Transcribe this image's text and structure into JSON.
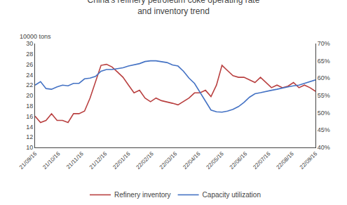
{
  "chart_data": {
    "type": "line",
    "title": "China's refinery petroleum coke operating rate\nand inventory trend",
    "ylabel": "10000 tons",
    "x": [
      0,
      0.2352941176,
      0.4705882353,
      0.7058823529,
      0.9411764706,
      1.1764705882,
      1.4117647059,
      1.6470588235,
      1.8823529412,
      2.1176470588,
      2.3529411765,
      2.5882352941,
      2.8235294118,
      3.0588235294,
      3.2941176471,
      3.5294117647,
      3.7647058824,
      4,
      4.2352941176,
      4.4705882353,
      4.7058823529,
      4.9411764706,
      5.1764705882,
      5.4117647059,
      5.6470588235,
      5.8823529412,
      6.1176470588,
      6.3529411765,
      6.5882352941,
      6.8235294118,
      7.0588235294,
      7.2941176471,
      7.5294117647,
      7.7647058824,
      8,
      8.2352941176,
      8.4705882353,
      8.7058823529,
      8.9411764706,
      9.1764705882,
      9.4117647059,
      9.6470588235,
      9.8823529412,
      10.1176470588,
      10.3529411765,
      10.5882352941,
      10.8235294118,
      11.0588235294,
      11.2941176471,
      11.5294117647,
      11.7647058824,
      12
    ],
    "xlim": [
      0,
      12
    ],
    "xticks": [
      {
        "value": 0,
        "label": "21/09/16"
      },
      {
        "value": 1,
        "label": "21/10/16"
      },
      {
        "value": 2,
        "label": "21/11/16"
      },
      {
        "value": 3,
        "label": "21/12/16"
      },
      {
        "value": 4,
        "label": "22/01/16"
      },
      {
        "value": 5,
        "label": "22/02/16"
      },
      {
        "value": 6,
        "label": "22/03/16"
      },
      {
        "value": 7,
        "label": "22/04/16"
      },
      {
        "value": 8,
        "label": "22/05/16"
      },
      {
        "value": 9,
        "label": "22/06/16"
      },
      {
        "value": 10,
        "label": "22/07/16"
      },
      {
        "value": 11,
        "label": "22/08/16"
      },
      {
        "value": 12,
        "label": "22/09/16"
      }
    ],
    "ylim": [
      10,
      30
    ],
    "yticks": [
      10,
      12,
      14,
      16,
      18,
      20,
      22,
      24,
      26,
      28,
      30
    ],
    "y2lim": [
      0.4,
      0.7
    ],
    "y2ticks": [
      {
        "value": 0.4,
        "label": "40%"
      },
      {
        "value": 0.45,
        "label": "45%"
      },
      {
        "value": 0.5,
        "label": "50%"
      },
      {
        "value": 0.55,
        "label": "55%"
      },
      {
        "value": 0.6,
        "label": "60%"
      },
      {
        "value": 0.65,
        "label": "65%"
      },
      {
        "value": 0.7,
        "label": "70%"
      }
    ],
    "grid": false,
    "legend": "bottom",
    "series": [
      {
        "name": "Refinery inventory",
        "color": "#b94040",
        "values": [
          16.0,
          14.8,
          15.2,
          16.5,
          15.2,
          15.2,
          14.8,
          16.5,
          16.5,
          17.0,
          19.5,
          22.5,
          25.8,
          26.0,
          25.5,
          24.5,
          23.5,
          22.0,
          20.5,
          21.0,
          19.5,
          18.8,
          19.5,
          19.0,
          18.8,
          18.5,
          18.2,
          18.8,
          19.5,
          20.5,
          20.5,
          21.0,
          19.8,
          22.0,
          25.8,
          24.8,
          23.8,
          23.5,
          23.5,
          23.0,
          22.5,
          23.5,
          22.5,
          21.5,
          22.0,
          21.5,
          21.8,
          22.5,
          21.5,
          22.0,
          21.5,
          20.8
        ]
      },
      {
        "name": "Capacity utilization",
        "color": "#4472c4",
        "axis": "y2",
        "values": [
          0.58,
          0.59,
          0.57,
          0.568,
          0.575,
          0.58,
          0.578,
          0.585,
          0.585,
          0.598,
          0.6,
          0.605,
          0.62,
          0.625,
          0.625,
          0.628,
          0.63,
          0.635,
          0.638,
          0.642,
          0.648,
          0.65,
          0.65,
          0.648,
          0.645,
          0.638,
          0.635,
          0.62,
          0.6,
          0.585,
          0.56,
          0.535,
          0.508,
          0.503,
          0.502,
          0.505,
          0.51,
          0.518,
          0.53,
          0.545,
          0.555,
          0.558,
          0.562,
          0.565,
          0.568,
          0.572,
          0.575,
          0.578,
          0.58,
          0.585,
          0.59,
          0.595
        ]
      }
    ]
  }
}
